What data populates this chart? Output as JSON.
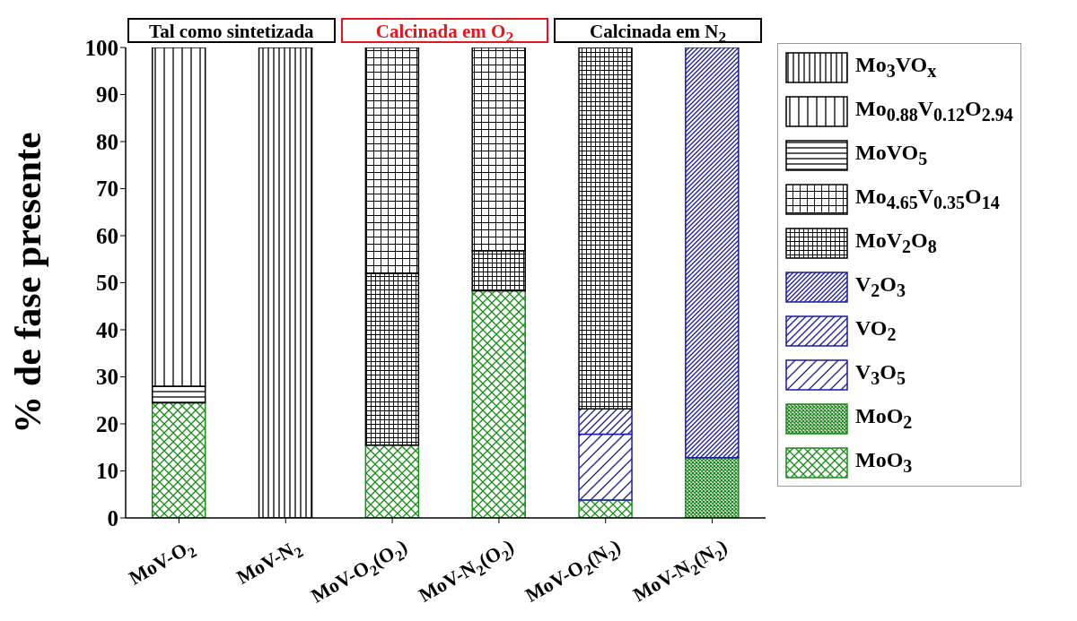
{
  "chart_data": {
    "type": "bar",
    "stacked": true,
    "ylabel": "% de fase presente",
    "categories": [
      "MoV-O$_{2}$",
      "MoV-N$_{2}$",
      "MoV-O$_{2}$(O$_{2}$)",
      "MoV-N$_{2}$(O$_{2}$)",
      "MoV-O$_{2}$(N$_{2}$)",
      "MoV-N$_{2}$(N$_{2}$)"
    ],
    "series": [
      {
        "name": "MoO$_{3}$",
        "color": "#1a8c1a",
        "values": [
          24.5,
          null,
          15.5,
          48.3,
          3.8,
          null
        ]
      },
      {
        "name": "MoO$_{2}$",
        "color": "#1a8c1a",
        "values": [
          null,
          null,
          null,
          null,
          null,
          12.8
        ]
      },
      {
        "name": "V$_{3}$O$_{5}$",
        "color": "#1a1a9c",
        "values": [
          null,
          null,
          null,
          null,
          14,
          null
        ]
      },
      {
        "name": "VO$_{2}$",
        "color": "#1a1a9c",
        "values": [
          null,
          null,
          null,
          null,
          5.4,
          null
        ]
      },
      {
        "name": "V$_{2}$O$_{3}$",
        "color": "#1a1a9c",
        "values": [
          null,
          null,
          null,
          null,
          null,
          87.2
        ]
      },
      {
        "name": "MoV$_{2}$O$_{8}$",
        "color": "#000000",
        "values": [
          null,
          null,
          36.5,
          8.5,
          76.8,
          null
        ]
      },
      {
        "name": "Mo$_{4.65}$V$_{0.35}$O$_{14}$",
        "color": "#000000",
        "values": [
          null,
          null,
          48,
          43.2,
          null,
          null
        ]
      },
      {
        "name": "MoVO$_{5}$",
        "color": "#000000",
        "values": [
          3.5,
          null,
          null,
          null,
          null,
          null
        ]
      },
      {
        "name": "Mo$_{0.88}$V$_{0.12}$O$_{2.94}$",
        "color": "#000000",
        "values": [
          72,
          null,
          null,
          null,
          null,
          null
        ]
      },
      {
        "name": "Mo$_{3}$VO$_{x}$",
        "color": "#000000",
        "values": [
          null,
          100,
          null,
          null,
          null,
          null
        ]
      }
    ],
    "ylim": [
      0,
      100
    ],
    "yticks": [
      0,
      10,
      20,
      30,
      40,
      50,
      60,
      70,
      80,
      90,
      100
    ],
    "legend": "right",
    "annotations": [
      "Tal como sintetizada",
      "Calcinada em O$_{2}$",
      "Calcinada em N$_{2}$"
    ]
  }
}
